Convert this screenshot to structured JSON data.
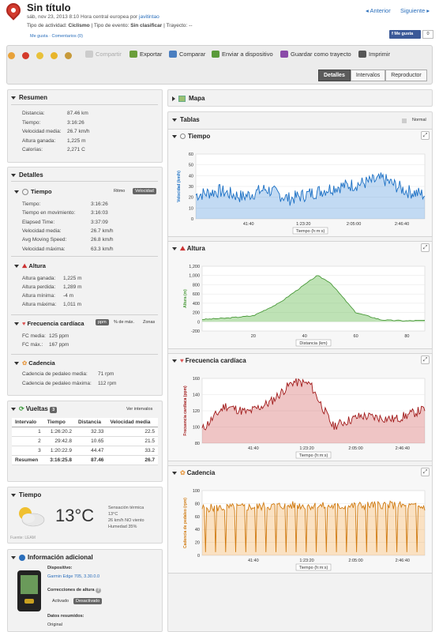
{
  "header": {
    "title": "Sin título",
    "date_line": "sáb, nov 23, 2013 8:10 Hora central europea por",
    "author": "javitintao",
    "activity_type_label": "Tipo de actividad:",
    "activity_type": "Ciclismo",
    "event_type_label": "| Tipo de evento:",
    "event_type": "Sin clasificar",
    "course_label": "| Trayecto:",
    "course": "--",
    "likes": "Me gusta · Comentarios (0)",
    "prev": "Anterior",
    "next": "Siguiente",
    "fb_like": "Me gusta",
    "fb_count": "0"
  },
  "toolbar": {
    "share": "Compartir",
    "export": "Exportar",
    "compare": "Comparar",
    "send": "Enviar a dispositivo",
    "save_course": "Guardar como trayecto",
    "print": "Imprimir",
    "tabs": [
      "Detalles",
      "Intervalos",
      "Reproductor"
    ]
  },
  "summary": {
    "title": "Resumen",
    "rows": [
      {
        "label": "Distancia:",
        "value": "87.46 km"
      },
      {
        "label": "Tiempo:",
        "value": "3:16:26"
      },
      {
        "label": "Velocidad media:",
        "value": "26.7 km/h"
      },
      {
        "label": "Altura ganada:",
        "value": "1,225 m"
      },
      {
        "label": "Calorías:",
        "value": "2,271 C"
      }
    ]
  },
  "details": {
    "title": "Detalles",
    "time": {
      "title": "Tiempo",
      "rhythm": "Ritmo",
      "speed": "Velocidad",
      "rows": [
        {
          "label": "Tiempo:",
          "value": "3:16:26"
        },
        {
          "label": "Tiempo en movimiento:",
          "value": "3:16:03"
        },
        {
          "label": "Elapsed Time:",
          "value": "3:37:09"
        },
        {
          "label": "Velocidad media:",
          "value": "26.7 km/h"
        },
        {
          "label": "Avg Moving Speed:",
          "value": "26.8 km/h"
        },
        {
          "label": "Velocidad máxima:",
          "value": "63.3 km/h"
        }
      ]
    },
    "altitude": {
      "title": "Altura",
      "rows": [
        {
          "label": "Altura ganada:",
          "value": "1,225 m"
        },
        {
          "label": "Altura perdida:",
          "value": "1,289 m"
        },
        {
          "label": "Altura mínima:",
          "value": "-4 m"
        },
        {
          "label": "Altura máxima:",
          "value": "1,011 m"
        }
      ]
    },
    "heart": {
      "title": "Frecuencia cardíaca",
      "ppm": "ppm",
      "pct": "% de máx.",
      "zones": "Zonas",
      "rows": [
        {
          "label": "FC media:",
          "value": "125 ppm"
        },
        {
          "label": "FC máx.:",
          "value": "167 ppm"
        }
      ]
    },
    "cadence": {
      "title": "Cadencia",
      "rows": [
        {
          "label": "Cadencia de pedaleo media:",
          "value": "71 rpm"
        },
        {
          "label": "Cadencia de pedaleo máxima:",
          "value": "112 rpm"
        }
      ]
    }
  },
  "laps": {
    "title": "Vueltas",
    "count": "3",
    "view": "Ver intervalos",
    "headers": [
      "Intervalo",
      "Tiempo",
      "Distancia",
      "Velocidad media"
    ],
    "rows": [
      [
        "1",
        "1:26:20.2",
        "32.33",
        "22.5"
      ],
      [
        "2",
        "29:42.8",
        "10.65",
        "21.5"
      ],
      [
        "3",
        "1:20:22.9",
        "44.47",
        "33.2"
      ]
    ],
    "summary": [
      "Resumen",
      "3:16:25.8",
      "87.46",
      "26.7"
    ]
  },
  "weather": {
    "title": "Tiempo",
    "temp": "13°C",
    "feels": "Sensación térmica",
    "feels_val": "13°C",
    "wind": "26 km/h NO viento",
    "humidity": "Humedad 35%",
    "source": "Fuente: LEAM"
  },
  "extra": {
    "title": "Información adicional",
    "device_label": "Dispositivo:",
    "device": "Garmin Edge 705, 3.30.0.0",
    "corrections": "Correcciones de altura",
    "on": "Activado",
    "off": "Desactivado",
    "summary_data": "Datos resumidos:",
    "original": "Original"
  },
  "right": {
    "map": "Mapa",
    "tables": "Tablas",
    "normal": "Normal"
  },
  "charts": {
    "time_title": "Tiempo",
    "alt_title": "Altura",
    "hr_title": "Frecuencia cardíaca",
    "cad_title": "Cadencia",
    "time_ylabel": "Velocidad (km/h)",
    "alt_ylabel": "Altura (m)",
    "hr_ylabel": "Frecuencia cardíaca (ppm)",
    "cad_ylabel": "Cadencia de pedaleo (rpm)",
    "time_selector": "Tiempo (h:m:s)",
    "dist_selector": "Distancia (km)",
    "time_ticks": [
      "41:40",
      "1:23:20",
      "2:05:00",
      "2:46:40"
    ],
    "dist_ticks": [
      "20",
      "40",
      "60",
      "80"
    ],
    "speed_yticks": [
      "60",
      "50",
      "40",
      "30",
      "20",
      "10",
      "0"
    ],
    "alt_yticks": [
      "1,200",
      "1,000",
      "800",
      "600",
      "400",
      "200",
      "0",
      "-200"
    ],
    "hr_yticks": [
      "160",
      "140",
      "120",
      "100",
      "80"
    ],
    "cad_yticks": [
      "100",
      "80",
      "60",
      "40",
      "20",
      "0"
    ]
  },
  "chart_data": [
    {
      "type": "line",
      "title": "Tiempo",
      "ylabel": "Velocidad (km/h)",
      "ylim": [
        0,
        65
      ],
      "x_unit": "h:m:s",
      "x": [
        0,
        20,
        40,
        60,
        80,
        100,
        120,
        140,
        160,
        180,
        196
      ],
      "values": [
        24,
        28,
        22,
        30,
        20,
        26,
        32,
        35,
        40,
        28,
        24
      ]
    },
    {
      "type": "area",
      "title": "Altura",
      "ylabel": "Altura (m)",
      "ylim": [
        -200,
        1200
      ],
      "x": [
        0,
        10,
        20,
        30,
        40,
        45,
        50,
        60,
        70,
        80,
        87
      ],
      "values": [
        50,
        80,
        130,
        400,
        800,
        1000,
        850,
        200,
        40,
        20,
        30
      ]
    },
    {
      "type": "line",
      "title": "Frecuencia cardíaca",
      "ylabel": "Frecuencia cardíaca (ppm)",
      "ylim": [
        75,
        170
      ],
      "x": [
        0,
        20,
        40,
        60,
        80,
        95,
        115,
        140,
        170,
        196
      ],
      "values": [
        95,
        130,
        120,
        135,
        165,
        162,
        100,
        115,
        110,
        125
      ]
    },
    {
      "type": "line",
      "title": "Cadencia",
      "ylabel": "Cadencia de pedaleo (rpm)",
      "ylim": [
        0,
        110
      ],
      "x": [
        0,
        40,
        80,
        120,
        160,
        196
      ],
      "values": [
        80,
        82,
        85,
        83,
        86,
        82
      ]
    }
  ]
}
